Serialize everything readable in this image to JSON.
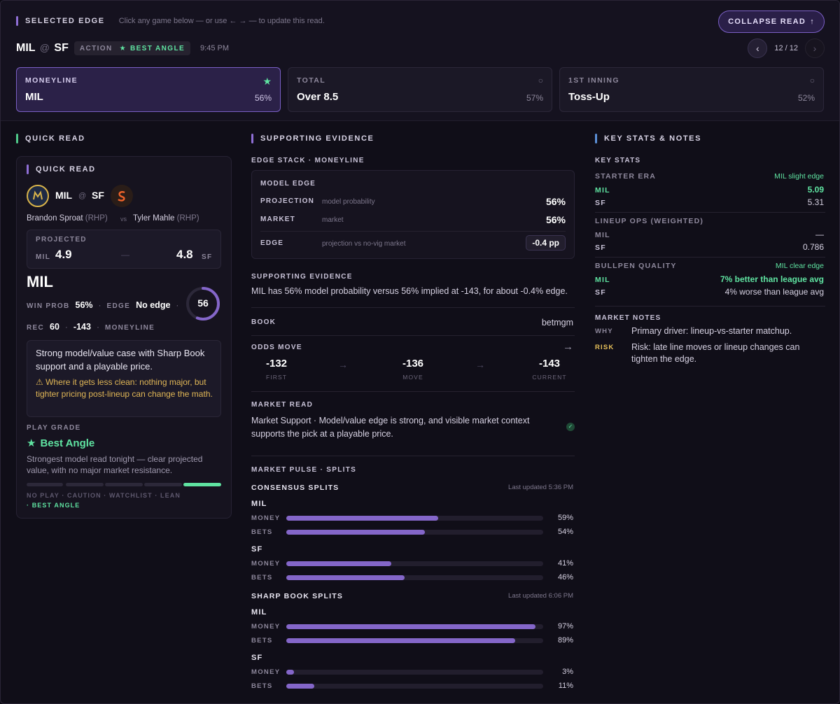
{
  "header": {
    "section_label": "SELECTED EDGE",
    "hint": "Click any game below — or use ← → — to update this read.",
    "collapse_label": "COLLAPSE READ",
    "collapse_arrow": "↑",
    "away": "MIL",
    "at": "@",
    "home": "SF",
    "action_label": "ACTION",
    "best_angle": "BEST ANGLE",
    "time": "9:45 PM",
    "pager_text": "12 / 12",
    "prev": "‹",
    "next": "›"
  },
  "cards": [
    {
      "label": "MONEYLINE",
      "value": "MIL",
      "pct": "56%",
      "icon": "★"
    },
    {
      "label": "TOTAL",
      "value": "Over 8.5",
      "pct": "57%",
      "icon": "○"
    },
    {
      "label": "1ST INNING",
      "value": "Toss-Up",
      "pct": "52%",
      "icon": "○"
    }
  ],
  "quick": {
    "col_title": "QUICK READ",
    "panel_title": "QUICK READ",
    "away": "MIL",
    "at": "@",
    "home": "SF",
    "away_pitcher": "Brandon Sproat",
    "away_hand": "(RHP)",
    "vs": "vs",
    "home_pitcher": "Tyler Mahle",
    "home_hand": "(RHP)",
    "projected_label": "PROJECTED",
    "proj_away_team": "MIL",
    "proj_away": "4.9",
    "proj_dash": "—",
    "proj_home": "4.8",
    "proj_home_team": "SF",
    "pick": "MIL",
    "win_prob_label": "WIN PROB",
    "win_prob": "56%",
    "edge_label": "EDGE",
    "edge": "No edge",
    "dot": "·",
    "rec_label": "REC",
    "rec": "60",
    "odds": "-143",
    "market": "MONEYLINE",
    "ring_value": "56",
    "ring_pct": 0.56,
    "note_main": "Strong model/value case with Sharp Book support and a playable price.",
    "note_warn": "⚠ Where it gets less clean: nothing major, but tighter pricing post-lineup can change the math.",
    "grade_label": "PLAY GRADE",
    "grade": "Best Angle",
    "grade_desc": "Strongest model read tonight — clear projected value, with no major market resistance.",
    "grade_scale": "NO PLAY · CAUTION · WATCHLIST · LEAN",
    "grade_scale_active": "· BEST ANGLE"
  },
  "evidence": {
    "col_title": "SUPPORTING EVIDENCE",
    "stack_title": "EDGE STACK · MONEYLINE",
    "model_edge": "MODEL EDGE",
    "rows": [
      {
        "label": "PROJECTION",
        "sub": "model probability",
        "value": "56%"
      },
      {
        "label": "MARKET",
        "sub": "market",
        "value": "56%"
      },
      {
        "label": "EDGE",
        "sub": "projection vs no-vig market",
        "value": "-0.4 pp"
      }
    ],
    "support_title": "SUPPORTING EVIDENCE",
    "support_text": "MIL has 56% model probability versus 56% implied at -143, for about -0.4% edge.",
    "book_label": "BOOK",
    "book": "betmgm",
    "odds_move_label": "ODDS MOVE",
    "odds_move_arrow": "→",
    "moves": [
      {
        "value": "-132",
        "label": "FIRST"
      },
      {
        "value": "-136",
        "label": "MOVE"
      },
      {
        "value": "-143",
        "label": "CURRENT"
      }
    ],
    "move_sep": "→",
    "market_read_label": "MARKET READ",
    "market_read": "Market Support · Model/value edge is strong, and visible market context supports the pick at a playable price.",
    "pulse_title": "MARKET PULSE · SPLITS",
    "consensus": {
      "title": "CONSENSUS SPLITS",
      "updated": "Last updated 5:36 PM",
      "teams": [
        {
          "team": "MIL",
          "rows": [
            {
              "label": "MONEY",
              "value": 59,
              "text": "59%"
            },
            {
              "label": "BETS",
              "value": 54,
              "text": "54%"
            }
          ]
        },
        {
          "team": "SF",
          "rows": [
            {
              "label": "MONEY",
              "value": 41,
              "text": "41%"
            },
            {
              "label": "BETS",
              "value": 46,
              "text": "46%"
            }
          ]
        }
      ]
    },
    "sharp": {
      "title": "SHARP BOOK SPLITS",
      "updated": "Last updated 6:06 PM",
      "teams": [
        {
          "team": "MIL",
          "rows": [
            {
              "label": "MONEY",
              "value": 97,
              "text": "97%"
            },
            {
              "label": "BETS",
              "value": 89,
              "text": "89%"
            }
          ]
        },
        {
          "team": "SF",
          "rows": [
            {
              "label": "MONEY",
              "value": 3,
              "text": "3%"
            },
            {
              "label": "BETS",
              "value": 11,
              "text": "11%"
            }
          ]
        }
      ]
    }
  },
  "stats": {
    "col_title": "KEY STATS & NOTES",
    "key_stats": "KEY STATS",
    "starter_era": "STARTER ERA",
    "starter_era_tag": "MIL slight edge",
    "era_mil_label": "MIL",
    "era_mil": "5.09",
    "era_sf_label": "SF",
    "era_sf": "5.31",
    "ops_title": "LINEUP OPS (WEIGHTED)",
    "ops_mil_label": "MIL",
    "ops_mil": "—",
    "ops_sf_label": "SF",
    "ops_sf": "0.786",
    "bullpen_title": "BULLPEN QUALITY",
    "bullpen_tag": "MIL clear edge",
    "bp_mil_label": "MIL",
    "bp_mil": "7% better than league avg",
    "bp_sf_label": "SF",
    "bp_sf": "4% worse than league avg",
    "notes_title": "MARKET NOTES",
    "why_label": "WHY",
    "why": "Primary driver: lineup-vs-starter matchup.",
    "risk_label": "RISK",
    "risk": "Risk: late line moves or lineup changes can tighten the edge."
  },
  "colors": {
    "accent": "#8466c9",
    "positive": "#5fe3a1",
    "risk": "#e8c15a"
  }
}
